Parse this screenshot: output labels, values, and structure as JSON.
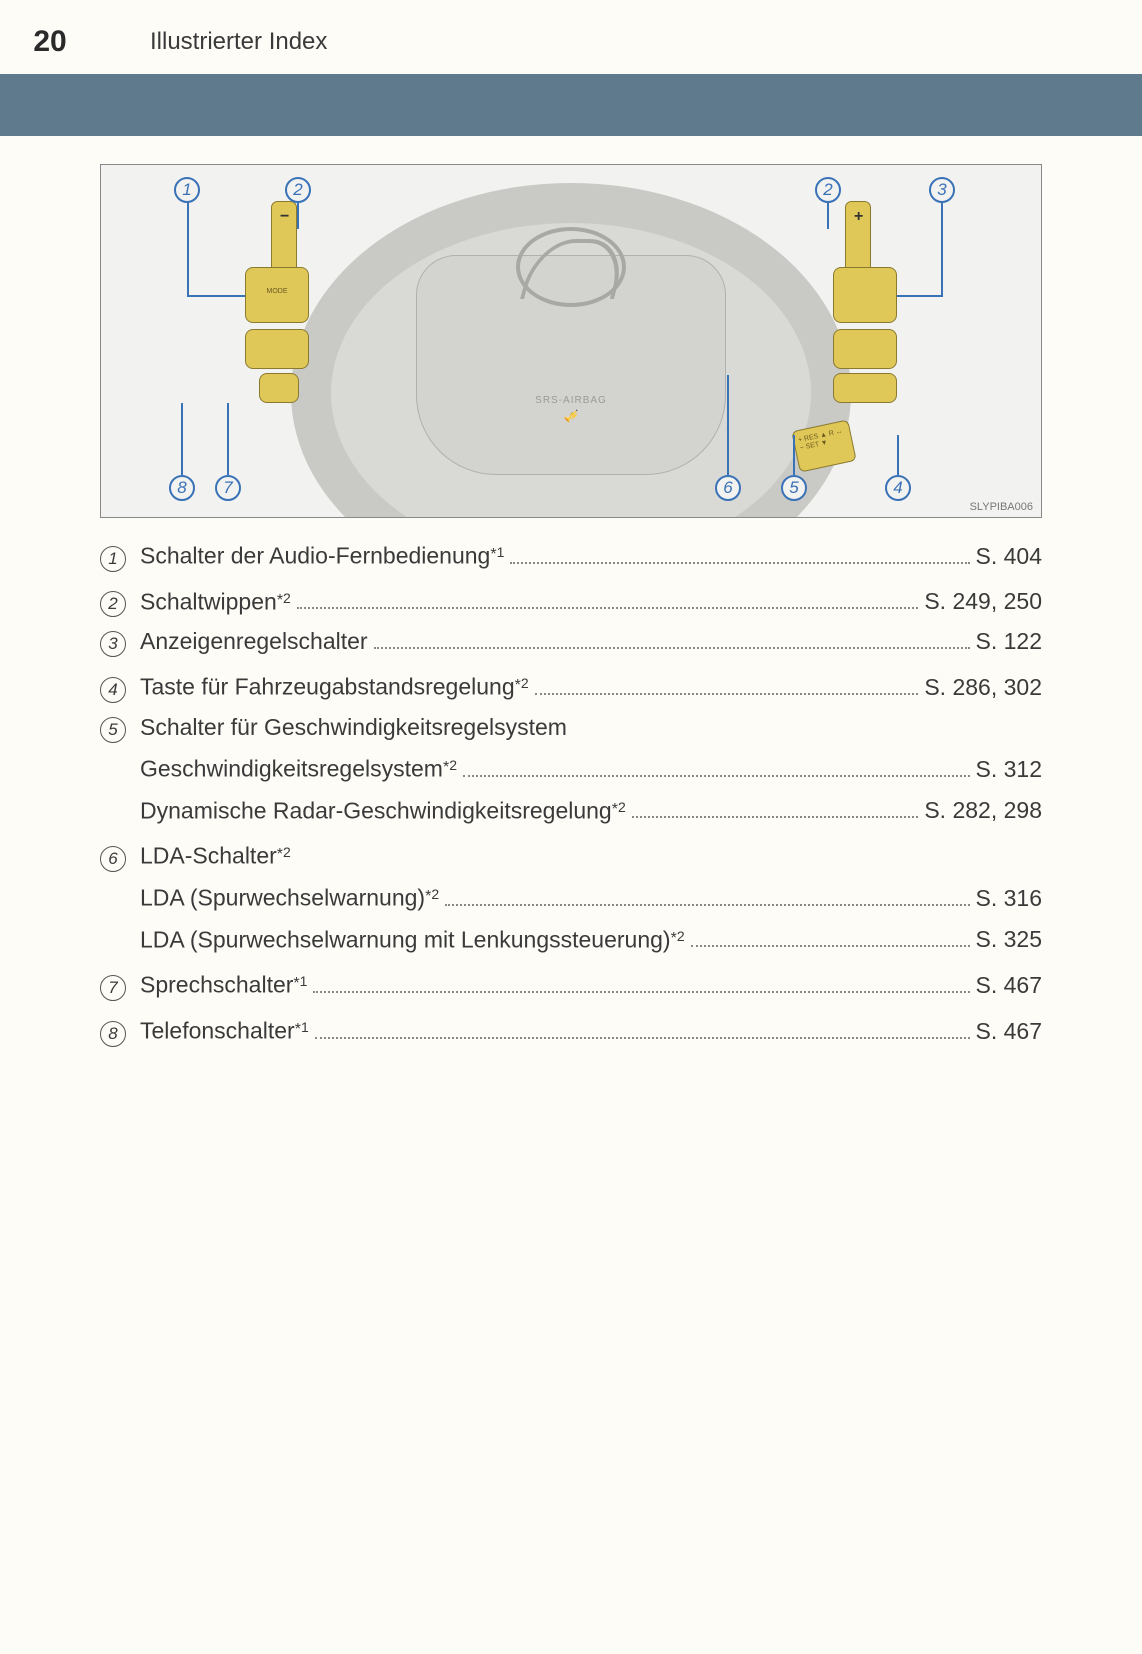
{
  "page_number": "20",
  "section_title": "Illustrierter Index",
  "diagram": {
    "airbag_label": "SRS-AIRBAG",
    "image_code": "SLYPIBA006",
    "stalk_text": "+ RES ▲\n  R ↔\n− SET ▼",
    "callouts": {
      "c1": "1",
      "c2": "2",
      "c3": "3",
      "c4": "4",
      "c5": "5",
      "c6": "6",
      "c7": "7",
      "c8": "8"
    }
  },
  "items": [
    {
      "num": "1",
      "lines": [
        {
          "label": "Schalter der Audio-Fernbedienung",
          "footnote": "*1",
          "page": "S. 404"
        }
      ]
    },
    {
      "num": "2",
      "lines": [
        {
          "label": "Schaltwippen",
          "footnote": "*2",
          "page": "S. 249, 250"
        }
      ]
    },
    {
      "num": "3",
      "lines": [
        {
          "label": "Anzeigenregelschalter",
          "footnote": "",
          "page": "S. 122"
        }
      ]
    },
    {
      "num": "4",
      "lines": [
        {
          "label": "Taste für Fahrzeugabstandsregelung",
          "footnote": "*2",
          "page": "S. 286, 302"
        }
      ]
    },
    {
      "num": "5",
      "heading": "Schalter für Geschwindigkeitsregelsystem",
      "lines": [
        {
          "label": "Geschwindigkeitsregelsystem",
          "footnote": "*2",
          "page": "S. 312"
        },
        {
          "label": "Dynamische Radar-Geschwindigkeitsregelung",
          "footnote": "*2",
          "page": "S. 282, 298"
        }
      ]
    },
    {
      "num": "6",
      "heading": "LDA-Schalter",
      "heading_footnote": "*2",
      "lines": [
        {
          "label": "LDA (Spurwechselwarnung)",
          "footnote": "*2",
          "page": "S. 316"
        },
        {
          "label": "LDA (Spurwechselwarnung mit Lenkungssteuerung)",
          "footnote": "*2",
          "page": "S. 325"
        }
      ]
    },
    {
      "num": "7",
      "lines": [
        {
          "label": "Sprechschalter",
          "footnote": "*1",
          "page": "S. 467"
        }
      ]
    },
    {
      "num": "8",
      "lines": [
        {
          "label": "Telefonschalter",
          "footnote": "*1",
          "page": "S. 467"
        }
      ]
    }
  ]
}
